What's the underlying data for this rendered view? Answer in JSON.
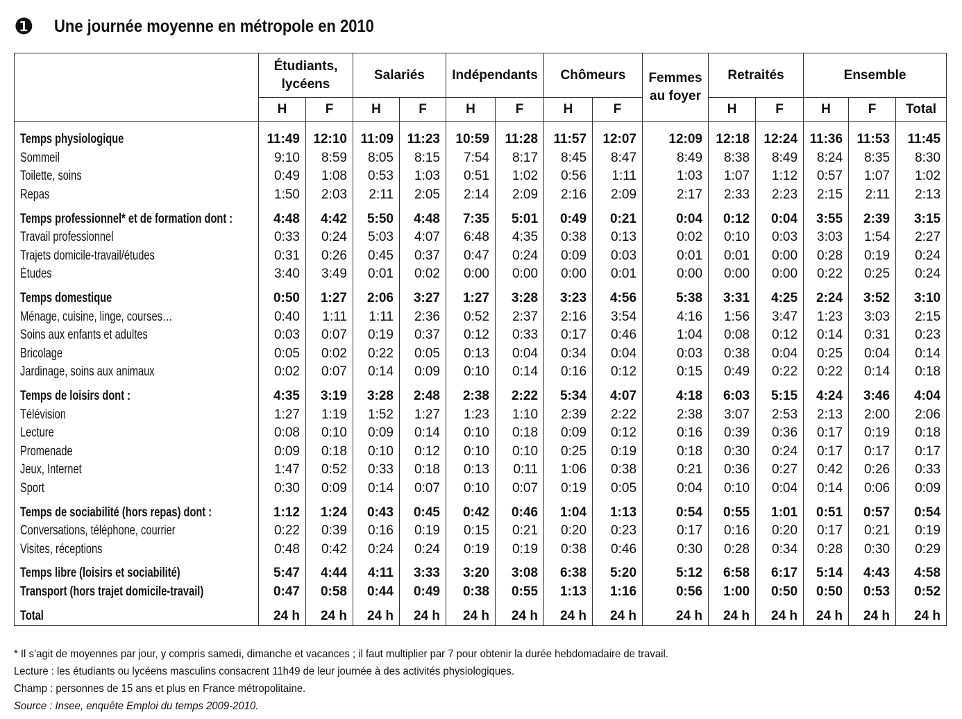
{
  "header": {
    "marker": "❶",
    "title": "Une journée moyenne en métropole en 2010"
  },
  "table": {
    "groups": [
      {
        "name": "Étudiants, lycéens",
        "sub": [
          "H",
          "F"
        ]
      },
      {
        "name": "Salariés",
        "sub": [
          "H",
          "F"
        ]
      },
      {
        "name": "Indépendants",
        "sub": [
          "H",
          "F"
        ]
      },
      {
        "name": "Chômeurs",
        "sub": [
          "H",
          "F"
        ]
      },
      {
        "name": "Femmes au foyer",
        "sub": []
      },
      {
        "name": "Retraités",
        "sub": [
          "H",
          "F"
        ]
      },
      {
        "name": "Ensemble",
        "sub": [
          "H",
          "F",
          "Total"
        ]
      }
    ],
    "sections": [
      {
        "rows": [
          {
            "label": "Temps physiologique",
            "bold": true,
            "values": [
              "11:49",
              "12:10",
              "11:09",
              "11:23",
              "10:59",
              "11:28",
              "11:57",
              "12:07",
              "12:09",
              "12:18",
              "12:24",
              "11:36",
              "11:53",
              "11:45"
            ]
          },
          {
            "label": "Sommeil",
            "values": [
              "9:10",
              "8:59",
              "8:05",
              "8:15",
              "7:54",
              "8:17",
              "8:45",
              "8:47",
              "8:49",
              "8:38",
              "8:49",
              "8:24",
              "8:35",
              "8:30"
            ]
          },
          {
            "label": "Toilette, soins",
            "values": [
              "0:49",
              "1:08",
              "0:53",
              "1:03",
              "0:51",
              "1:02",
              "0:56",
              "1:11",
              "1:03",
              "1:07",
              "1:12",
              "0:57",
              "1:07",
              "1:02"
            ]
          },
          {
            "label": "Repas",
            "values": [
              "1:50",
              "2:03",
              "2:11",
              "2:05",
              "2:14",
              "2:09",
              "2:16",
              "2:09",
              "2:17",
              "2:33",
              "2:23",
              "2:15",
              "2:11",
              "2:13"
            ]
          }
        ]
      },
      {
        "rows": [
          {
            "label": "Temps professionnel* et de formation dont :",
            "bold": true,
            "values": [
              "4:48",
              "4:42",
              "5:50",
              "4:48",
              "7:35",
              "5:01",
              "0:49",
              "0:21",
              "0:04",
              "0:12",
              "0:04",
              "3:55",
              "2:39",
              "3:15"
            ]
          },
          {
            "label": "Travail professionnel",
            "values": [
              "0:33",
              "0:24",
              "5:03",
              "4:07",
              "6:48",
              "4:35",
              "0:38",
              "0:13",
              "0:02",
              "0:10",
              "0:03",
              "3:03",
              "1:54",
              "2:27"
            ]
          },
          {
            "label": "Trajets domicile-travail/études",
            "values": [
              "0:31",
              "0:26",
              "0:45",
              "0:37",
              "0:47",
              "0:24",
              "0:09",
              "0:03",
              "0:01",
              "0:01",
              "0:00",
              "0:28",
              "0:19",
              "0:24"
            ]
          },
          {
            "label": "Études",
            "values": [
              "3:40",
              "3:49",
              "0:01",
              "0:02",
              "0:00",
              "0:00",
              "0:00",
              "0:01",
              "0:00",
              "0:00",
              "0:00",
              "0:22",
              "0:25",
              "0:24"
            ]
          }
        ]
      },
      {
        "rows": [
          {
            "label": "Temps domestique",
            "bold": true,
            "values": [
              "0:50",
              "1:27",
              "2:06",
              "3:27",
              "1:27",
              "3:28",
              "3:23",
              "4:56",
              "5:38",
              "3:31",
              "4:25",
              "2:24",
              "3:52",
              "3:10"
            ]
          },
          {
            "label": "Ménage, cuisine, linge, courses…",
            "values": [
              "0:40",
              "1:11",
              "1:11",
              "2:36",
              "0:52",
              "2:37",
              "2:16",
              "3:54",
              "4:16",
              "1:56",
              "3:47",
              "1:23",
              "3:03",
              "2:15"
            ]
          },
          {
            "label": "Soins aux enfants et adultes",
            "values": [
              "0:03",
              "0:07",
              "0:19",
              "0:37",
              "0:12",
              "0:33",
              "0:17",
              "0:46",
              "1:04",
              "0:08",
              "0:12",
              "0:14",
              "0:31",
              "0:23"
            ]
          },
          {
            "label": "Bricolage",
            "values": [
              "0:05",
              "0:02",
              "0:22",
              "0:05",
              "0:13",
              "0:04",
              "0:34",
              "0:04",
              "0:03",
              "0:38",
              "0:04",
              "0:25",
              "0:04",
              "0:14"
            ]
          },
          {
            "label": "Jardinage, soins aux animaux",
            "values": [
              "0:02",
              "0:07",
              "0:14",
              "0:09",
              "0:10",
              "0:14",
              "0:16",
              "0:12",
              "0:15",
              "0:49",
              "0:22",
              "0:22",
              "0:14",
              "0:18"
            ]
          }
        ]
      },
      {
        "rows": [
          {
            "label": "Temps de loisirs dont :",
            "bold": true,
            "values": [
              "4:35",
              "3:19",
              "3:28",
              "2:48",
              "2:38",
              "2:22",
              "5:34",
              "4:07",
              "4:18",
              "6:03",
              "5:15",
              "4:24",
              "3:46",
              "4:04"
            ]
          },
          {
            "label": "Télévision",
            "values": [
              "1:27",
              "1:19",
              "1:52",
              "1:27",
              "1:23",
              "1:10",
              "2:39",
              "2:22",
              "2:38",
              "3:07",
              "2:53",
              "2:13",
              "2:00",
              "2:06"
            ]
          },
          {
            "label": "Lecture",
            "values": [
              "0:08",
              "0:10",
              "0:09",
              "0:14",
              "0:10",
              "0:18",
              "0:09",
              "0:12",
              "0:16",
              "0:39",
              "0:36",
              "0:17",
              "0:19",
              "0:18"
            ]
          },
          {
            "label": "Promenade",
            "values": [
              "0:09",
              "0:18",
              "0:10",
              "0:12",
              "0:10",
              "0:10",
              "0:25",
              "0:19",
              "0:18",
              "0:30",
              "0:24",
              "0:17",
              "0:17",
              "0:17"
            ]
          },
          {
            "label": "Jeux, Internet",
            "values": [
              "1:47",
              "0:52",
              "0:33",
              "0:18",
              "0:13",
              "0:11",
              "1:06",
              "0:38",
              "0:21",
              "0:36",
              "0:27",
              "0:42",
              "0:26",
              "0:33"
            ]
          },
          {
            "label": "Sport",
            "values": [
              "0:30",
              "0:09",
              "0:14",
              "0:07",
              "0:10",
              "0:07",
              "0:19",
              "0:05",
              "0:04",
              "0:10",
              "0:04",
              "0:14",
              "0:06",
              "0:09"
            ]
          }
        ]
      },
      {
        "rows": [
          {
            "label": "Temps de sociabilité (hors repas) dont :",
            "bold": true,
            "values": [
              "1:12",
              "1:24",
              "0:43",
              "0:45",
              "0:42",
              "0:46",
              "1:04",
              "1:13",
              "0:54",
              "0:55",
              "1:01",
              "0:51",
              "0:57",
              "0:54"
            ]
          },
          {
            "label": "Conversations, téléphone, courrier",
            "values": [
              "0:22",
              "0:39",
              "0:16",
              "0:19",
              "0:15",
              "0:21",
              "0:20",
              "0:23",
              "0:17",
              "0:16",
              "0:20",
              "0:17",
              "0:21",
              "0:19"
            ]
          },
          {
            "label": "Visites, réceptions",
            "values": [
              "0:48",
              "0:42",
              "0:24",
              "0:24",
              "0:19",
              "0:19",
              "0:38",
              "0:46",
              "0:30",
              "0:28",
              "0:34",
              "0:28",
              "0:30",
              "0:29"
            ]
          }
        ]
      },
      {
        "rows": [
          {
            "label": "Temps libre (loisirs et sociabilité)",
            "bold": true,
            "values": [
              "5:47",
              "4:44",
              "4:11",
              "3:33",
              "3:20",
              "3:08",
              "6:38",
              "5:20",
              "5:12",
              "6:58",
              "6:17",
              "5:14",
              "4:43",
              "4:58"
            ]
          },
          {
            "label": "Transport (hors trajet domicile-travail)",
            "bold": true,
            "values": [
              "0:47",
              "0:58",
              "0:44",
              "0:49",
              "0:38",
              "0:55",
              "1:13",
              "1:16",
              "0:56",
              "1:00",
              "0:50",
              "0:50",
              "0:53",
              "0:52"
            ]
          }
        ]
      },
      {
        "rows": [
          {
            "label": "Total",
            "bold": true,
            "values": [
              "24 h",
              "24 h",
              "24 h",
              "24 h",
              "24 h",
              "24 h",
              "24 h",
              "24 h",
              "24 h",
              "24 h",
              "24 h",
              "24 h",
              "24 h",
              "24 h"
            ]
          }
        ]
      }
    ]
  },
  "notes": [
    "* Il s’agit de moyennes par jour, y compris samedi, dimanche et vacances ; il faut multiplier par 7 pour obtenir la durée hebdomadaire de travail.",
    "Lecture : les étudiants ou lycéens masculins consacrent 11h49 de leur journée à des activités physiologiques.",
    "Champ : personnes de 15 ans et plus en France métropolitaine."
  ],
  "source": "Source : Insee, enquête Emploi du temps 2009-2010."
}
